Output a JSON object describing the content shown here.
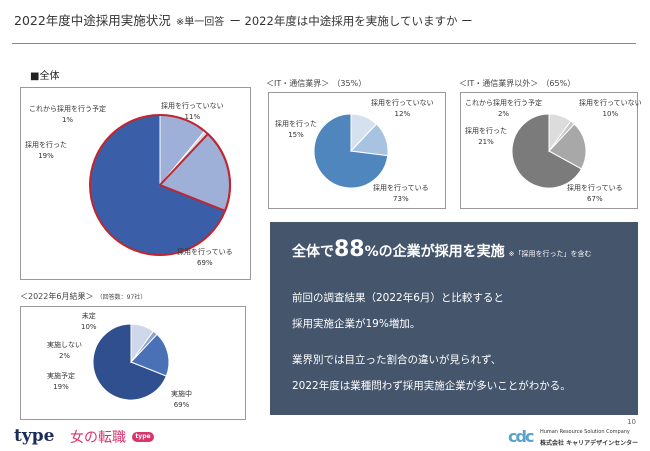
{
  "header": {
    "title": "2022年度中途採用実施状況",
    "note": "※単一回答",
    "question": "ー 2022年度は中途採用を実施していますか ー"
  },
  "sections": {
    "overall": {
      "label": "■全体"
    },
    "it": {
      "label": "＜IT・通信業界＞",
      "pct": "（35%）"
    },
    "non_it": {
      "label": "＜IT・通信業界以外＞",
      "pct": "（65%）"
    },
    "june": {
      "label": "＜2022年6月結果＞",
      "note": "（回答数：97社）"
    }
  },
  "summary": {
    "prefix": "全体で",
    "big": "88",
    "suffix": "%の企業が採用を実施",
    "note": "※「採用を行った」を含む",
    "lines": [
      "前回の調査結果（2022年6月）と比較すると",
      "採用実施企業が19%増加。",
      "業界別では目立った割合の違いが見られず、",
      "2022年度は業種問わず採用実施企業が多いことがわかる。"
    ]
  },
  "footer": {
    "brand_type": "type",
    "brand_onna": "女の転職",
    "brand_oval": "type",
    "logo_mark": "cdc",
    "company_en": "Human Resource Solution Company",
    "company_jp": "株式会社 キャリアデザインセンター",
    "page": "10"
  },
  "colors": {
    "overall_main": "#3a5ea7",
    "overall_done": "#9fb0d8",
    "overall_plan": "#d3dae9",
    "highlight": "#c0262f",
    "it_main": "#4f86bd",
    "it_done": "#a8c3e2",
    "it_not": "#d6e1ef",
    "nonit_main": "#7b7b7b",
    "nonit_done": "#a8a8a8",
    "nonit_plan": "#c6c6c6",
    "nonit_not": "#dcdcdc",
    "june_main": "#2f4f8f",
    "june_plan": "#4a70b5",
    "june_not": "#8ca3d0",
    "june_undecided": "#cfd8ea",
    "summary_bg": "#44556c"
  },
  "chart_data": [
    {
      "type": "pie",
      "title": "■全体",
      "categories": [
        "採用を行っている",
        "採用を行った",
        "これから採用を行う予定",
        "採用を行っていない"
      ],
      "values": [
        69,
        19,
        1,
        11
      ],
      "labels": {
        "main": [
          "採用を行っている",
          "69%"
        ],
        "done": [
          "採用を行った",
          "19%"
        ],
        "plan": [
          "これから採用を行う予定",
          "1%"
        ],
        "not": [
          "採用を行っていない",
          "11%"
        ]
      }
    },
    {
      "type": "pie",
      "title": "＜IT・通信業界＞",
      "categories": [
        "採用を行っている",
        "採用を行った",
        "採用を行っていない"
      ],
      "values": [
        73,
        15,
        12
      ],
      "labels": {
        "main": [
          "採用を行っている",
          "73%"
        ],
        "done": [
          "採用を行った",
          "15%"
        ],
        "not": [
          "採用を行っていない",
          "12%"
        ]
      }
    },
    {
      "type": "pie",
      "title": "＜IT・通信業界以外＞",
      "categories": [
        "採用を行っている",
        "採用を行った",
        "これから採用を行う予定",
        "採用を行っていない"
      ],
      "values": [
        67,
        21,
        2,
        10
      ],
      "labels": {
        "main": [
          "採用を行っている",
          "67%"
        ],
        "done": [
          "採用を行った",
          "21%"
        ],
        "plan": [
          "これから採用を行う予定",
          "2%"
        ],
        "not": [
          "採用を行っていない",
          "10%"
        ]
      }
    },
    {
      "type": "pie",
      "title": "＜2022年6月結果＞",
      "categories": [
        "実施中",
        "実施予定",
        "実施しない",
        "未定"
      ],
      "values": [
        69,
        19,
        2,
        10
      ],
      "labels": {
        "main": [
          "実施中",
          "69%"
        ],
        "plan": [
          "実施予定",
          "19%"
        ],
        "not": [
          "実施しない",
          "2%"
        ],
        "undecided": [
          "未定",
          "10%"
        ]
      }
    }
  ]
}
